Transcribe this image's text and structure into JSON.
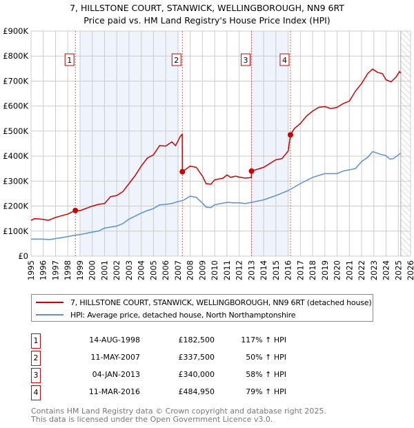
{
  "title": "7, HILLSTONE COURT, STANWICK, WELLINGBOROUGH, NN9 6RT",
  "subtitle": "Price paid vs. HM Land Registry's House Price Index (HPI)",
  "chart_data": {
    "type": "line",
    "xlim": [
      1995,
      2026
    ],
    "ylim": [
      0,
      900000
    ],
    "x_ticks": [
      "1995",
      "1996",
      "1997",
      "1998",
      "1999",
      "2000",
      "2001",
      "2002",
      "2003",
      "2004",
      "2005",
      "2006",
      "2007",
      "2008",
      "2009",
      "2010",
      "2011",
      "2012",
      "2013",
      "2014",
      "2015",
      "2016",
      "2017",
      "2018",
      "2019",
      "2020",
      "2021",
      "2022",
      "2023",
      "2024",
      "2025",
      "2026"
    ],
    "y_ticks": [
      {
        "v": 0,
        "label": "£0"
      },
      {
        "v": 100000,
        "label": "£100K"
      },
      {
        "v": 200000,
        "label": "£200K"
      },
      {
        "v": 300000,
        "label": "£300K"
      },
      {
        "v": 400000,
        "label": "£400K"
      },
      {
        "v": 500000,
        "label": "£500K"
      },
      {
        "v": 600000,
        "label": "£600K"
      },
      {
        "v": 700000,
        "label": "£700K"
      },
      {
        "v": 800000,
        "label": "£800K"
      },
      {
        "v": 900000,
        "label": "£900K"
      }
    ],
    "grid": true,
    "shaded_ranges": [
      [
        1999.0,
        2007.1
      ],
      [
        2013.0,
        2016.0
      ]
    ],
    "forecast_hatch_from": 2025.2,
    "series": [
      {
        "name": "7, HILLSTONE COURT, STANWICK, WELLINGBOROUGH, NN9 6RT (detached house)",
        "color": "#cc0000",
        "x": [
          1995,
          1995.3,
          1996,
          1996.4,
          1997,
          1998,
          1998.62,
          1999,
          2000,
          2000.5,
          2001,
          2001.5,
          2002,
          2002.5,
          2003,
          2003.5,
          2004,
          2004.5,
          2005,
          2005.5,
          2006,
          2006.5,
          2006.8,
          2007,
          2007.2,
          2007.35,
          2007.36,
          2008,
          2008.5,
          2009,
          2009.3,
          2009.7,
          2010,
          2010.7,
          2011,
          2011.3,
          2011.7,
          2012,
          2012.5,
          2012.99,
          2013.01,
          2014,
          2015,
          2015.5,
          2016,
          2016.19,
          2016.5,
          2017,
          2017.5,
          2018,
          2018.5,
          2019,
          2019.5,
          2020,
          2020.5,
          2021,
          2021.5,
          2022,
          2022.5,
          2022.9,
          2023.3,
          2023.7,
          2024,
          2024.4,
          2024.8,
          2025.1,
          2025.2
        ],
        "y": [
          143000,
          150000,
          147000,
          143000,
          155000,
          168000,
          182500,
          182000,
          200000,
          207000,
          210000,
          238000,
          242000,
          258000,
          290000,
          322000,
          360000,
          392000,
          405000,
          442000,
          440000,
          457000,
          442000,
          460000,
          480000,
          487000,
          337500,
          360000,
          355000,
          320000,
          290000,
          288000,
          305000,
          312000,
          325000,
          315000,
          320000,
          316000,
          312000,
          314000,
          340000,
          355000,
          385000,
          390000,
          420000,
          484950,
          510000,
          530000,
          560000,
          580000,
          595000,
          598000,
          590000,
          595000,
          610000,
          620000,
          660000,
          690000,
          730000,
          748000,
          735000,
          730000,
          705000,
          697000,
          715000,
          738000,
          732000
        ]
      },
      {
        "name": "HPI: Average price, detached house, North Northamptonshire",
        "color": "#5b8fd4",
        "x": [
          1995,
          1996,
          1996.5,
          1997,
          1998,
          1998.6,
          1999,
          2000,
          2000.5,
          2001,
          2002,
          2002.5,
          2003,
          2004,
          2004.5,
          2005,
          2005.5,
          2006,
          2006.5,
          2007,
          2007.4,
          2008,
          2008.5,
          2009,
          2009.3,
          2009.7,
          2010,
          2011,
          2011.5,
          2012,
          2012.5,
          2013,
          2014,
          2015,
          2016,
          2017,
          2018,
          2019,
          2020,
          2020.5,
          2021,
          2021.5,
          2022,
          2022.5,
          2022.9,
          2023.5,
          2024,
          2024.3,
          2024.6,
          2025,
          2025.2
        ],
        "y": [
          68000,
          68000,
          66000,
          70000,
          78000,
          84000,
          86000,
          96000,
          100000,
          112000,
          120000,
          130000,
          148000,
          172000,
          182000,
          190000,
          205000,
          207000,
          210000,
          218000,
          222000,
          240000,
          235000,
          212000,
          196000,
          194000,
          205000,
          215000,
          213000,
          213000,
          210000,
          215000,
          225000,
          242000,
          262000,
          290000,
          315000,
          330000,
          330000,
          340000,
          345000,
          350000,
          378000,
          395000,
          418000,
          408000,
          402000,
          388000,
          390000,
          405000,
          412000
        ]
      }
    ],
    "sales": [
      {
        "n": "1",
        "x": 1998.62,
        "y": 182500
      },
      {
        "n": "2",
        "x": 2007.36,
        "y": 337500
      },
      {
        "n": "3",
        "x": 2013.01,
        "y": 340000
      },
      {
        "n": "4",
        "x": 2016.19,
        "y": 484950
      }
    ]
  },
  "legend": {
    "property": "7, HILLSTONE COURT, STANWICK, WELLINGBOROUGH, NN9 6RT (detached house)",
    "hpi": "HPI: Average price, detached house, North Northamptonshire"
  },
  "transactions": [
    {
      "n": "1",
      "date": "14-AUG-1998",
      "price": "£182,500",
      "hpi": "117% ↑ HPI"
    },
    {
      "n": "2",
      "date": "11-MAY-2007",
      "price": "£337,500",
      "hpi": "50% ↑ HPI"
    },
    {
      "n": "3",
      "date": "04-JAN-2013",
      "price": "£340,000",
      "hpi": "58% ↑ HPI"
    },
    {
      "n": "4",
      "date": "11-MAR-2016",
      "price": "£484,950",
      "hpi": "79% ↑ HPI"
    }
  ],
  "footer": {
    "line1": "Contains HM Land Registry data © Crown copyright and database right 2025.",
    "line2": "This data is licensed under the Open Government Licence v3.0."
  }
}
